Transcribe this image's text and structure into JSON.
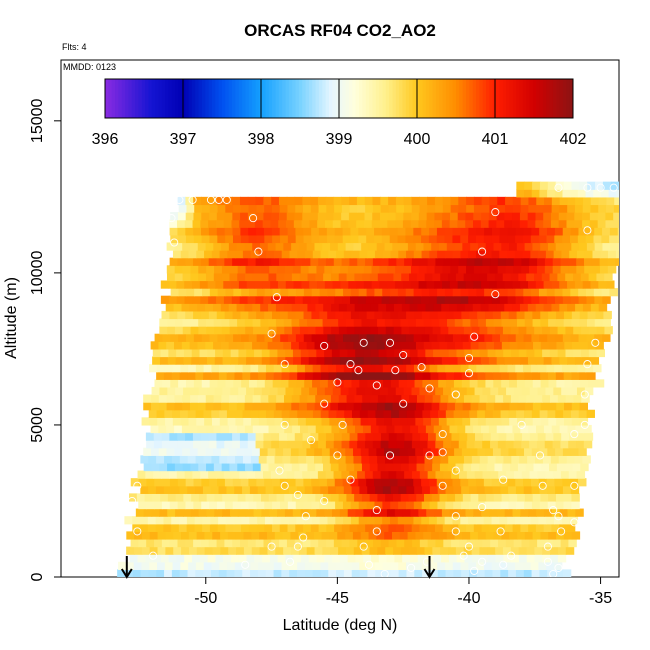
{
  "chart_data": {
    "type": "heatmap",
    "title": "ORCAS RF04 CO2_AO2",
    "annotations": {
      "flights": "Flts: 4",
      "date": "MMDD: 0123"
    },
    "xlabel": "Latitude (deg N)",
    "ylabel": "Altitude (m)",
    "xlim": [
      -55.5,
      -34.3
    ],
    "ylim": [
      0,
      17000
    ],
    "x_ticks": [
      -50,
      -45,
      -40,
      -35
    ],
    "x_tick_labels": [
      "-50",
      "-45",
      "-40",
      "-35"
    ],
    "y_ticks": [
      0,
      5000,
      10000,
      15000
    ],
    "y_tick_labels": [
      "0",
      "5000",
      "10000",
      "15000"
    ],
    "colorbar": {
      "min": 396,
      "max": 402,
      "ticks": [
        396,
        397,
        398,
        399,
        400,
        401,
        402
      ],
      "tick_labels": [
        "396",
        "397",
        "398",
        "399",
        "400",
        "401",
        "402"
      ],
      "stops": [
        {
          "v": 396.0,
          "c": "#8a2be2"
        },
        {
          "v": 396.6,
          "c": "#1414d2"
        },
        {
          "v": 397.0,
          "c": "#0000b4"
        },
        {
          "v": 397.5,
          "c": "#0050f0"
        },
        {
          "v": 398.0,
          "c": "#14a0ff"
        },
        {
          "v": 398.5,
          "c": "#78d2ff"
        },
        {
          "v": 398.9,
          "c": "#e6f6ff"
        },
        {
          "v": 399.2,
          "c": "#ffffdc"
        },
        {
          "v": 399.6,
          "c": "#fff08c"
        },
        {
          "v": 400.0,
          "c": "#ffc81e"
        },
        {
          "v": 400.5,
          "c": "#ff8c00"
        },
        {
          "v": 401.0,
          "c": "#ff1e00"
        },
        {
          "v": 401.5,
          "c": "#d20000"
        },
        {
          "v": 402.0,
          "c": "#8c1414"
        }
      ]
    },
    "arrows_latitude": [
      -53.0,
      -41.5
    ],
    "curtain": {
      "lat_bottom_left": -53.2,
      "lat_bottom_right": -36.3,
      "lat_top_left": -51.0,
      "lat_top_right": -33.9,
      "alt_top_left": 12500,
      "alt_top_right": 12900,
      "alt_step": 250
    },
    "co2_field_centers": [
      {
        "lat": -44.5,
        "alt": 7300,
        "value": 401.4,
        "radius": 2.5
      },
      {
        "lat": -41.0,
        "alt": 9500,
        "value": 401.1,
        "radius": 3.0
      },
      {
        "lat": -43.0,
        "alt": 2900,
        "value": 401.2,
        "radius": 1.8
      },
      {
        "lat": -42.5,
        "alt": 4900,
        "value": 401.0,
        "radius": 2.0
      },
      {
        "lat": -38.0,
        "alt": 11000,
        "value": 401.0,
        "radius": 2.5
      },
      {
        "lat": -48.0,
        "alt": 11000,
        "value": 401.0,
        "radius": 2.5
      }
    ],
    "flight_points": [
      [
        -51.5,
        12400
      ],
      [
        -51.0,
        12400
      ],
      [
        -50.5,
        12400
      ],
      [
        -49.8,
        12400
      ],
      [
        -49.5,
        12400
      ],
      [
        -49.2,
        12400
      ],
      [
        -51.3,
        11800
      ],
      [
        -48.2,
        11800
      ],
      [
        -51.2,
        11000
      ],
      [
        -52.0,
        10300
      ],
      [
        -48.0,
        10700
      ],
      [
        -52.8,
        9300
      ],
      [
        -47.3,
        9200
      ],
      [
        -53.2,
        8000
      ],
      [
        -47.5,
        8000
      ],
      [
        -45.5,
        7600
      ],
      [
        -44.5,
        7000
      ],
      [
        -44.0,
        7700
      ],
      [
        -43.0,
        7700
      ],
      [
        -42.5,
        7300
      ],
      [
        -44.2,
        6800
      ],
      [
        -43.5,
        6300
      ],
      [
        -42.8,
        6800
      ],
      [
        -53.0,
        6700
      ],
      [
        -52.6,
        6000
      ],
      [
        -47.0,
        7000
      ],
      [
        -41.8,
        6900
      ],
      [
        -41.5,
        6200
      ],
      [
        -40.5,
        6000
      ],
      [
        -40.0,
        7200
      ],
      [
        -40.0,
        6700
      ],
      [
        -39.8,
        7900
      ],
      [
        -40.5,
        6000
      ],
      [
        -39.0,
        9300
      ],
      [
        -39.5,
        10700
      ],
      [
        -39.0,
        12000
      ],
      [
        -36.6,
        12800
      ],
      [
        -35.5,
        12800
      ],
      [
        -35.0,
        12800
      ],
      [
        -34.5,
        12800
      ],
      [
        -35.5,
        11400
      ],
      [
        -34.0,
        11000
      ],
      [
        -34.0,
        10200
      ],
      [
        -35.2,
        7700
      ],
      [
        -35.5,
        7000
      ],
      [
        -35.6,
        6000
      ],
      [
        -35.6,
        5000
      ],
      [
        -36.0,
        4700
      ],
      [
        -36.0,
        3000
      ],
      [
        -36.6,
        2000
      ],
      [
        -37.0,
        1000
      ],
      [
        -37.0,
        500
      ],
      [
        -36.6,
        300
      ],
      [
        -53.0,
        4000
      ],
      [
        -52.6,
        3000
      ],
      [
        -52.8,
        2500
      ],
      [
        -52.6,
        1500
      ],
      [
        -52.0,
        700
      ],
      [
        -47.0,
        5000
      ],
      [
        -47.2,
        3500
      ],
      [
        -47.0,
        3000
      ],
      [
        -46.5,
        2700
      ],
      [
        -46.2,
        2000
      ],
      [
        -46.3,
        1300
      ],
      [
        -45.5,
        2500
      ],
      [
        -45.0,
        4000
      ],
      [
        -44.8,
        5000
      ],
      [
        -44.5,
        3200
      ],
      [
        -44.0,
        1000
      ],
      [
        -43.5,
        1500
      ],
      [
        -43.5,
        2200
      ],
      [
        -43.0,
        4000
      ],
      [
        -41.5,
        4000
      ],
      [
        -41.0,
        4700
      ],
      [
        -41.0,
        4100
      ],
      [
        -40.5,
        3500
      ],
      [
        -41.0,
        3000
      ],
      [
        -40.5,
        2000
      ],
      [
        -40.5,
        1500
      ],
      [
        -40.0,
        1000
      ],
      [
        -40.2,
        700
      ],
      [
        -39.8,
        200
      ],
      [
        -39.5,
        500
      ],
      [
        -39.5,
        2300
      ],
      [
        -38.7,
        3200
      ],
      [
        -38.0,
        5000
      ],
      [
        -37.3,
        4000
      ],
      [
        -37.2,
        3000
      ],
      [
        -36.8,
        2200
      ],
      [
        -36.5,
        1500
      ],
      [
        -36.0,
        1800
      ],
      [
        -38.8,
        1500
      ],
      [
        -38.4,
        700
      ],
      [
        -48.5,
        400
      ],
      [
        -47.5,
        1000
      ],
      [
        -46.8,
        500
      ],
      [
        -43.8,
        400
      ],
      [
        -43.2,
        100
      ],
      [
        -42.2,
        300
      ],
      [
        -41.6,
        500
      ],
      [
        -38.7,
        400
      ],
      [
        -36.8,
        100
      ],
      [
        -46.5,
        1000
      ],
      [
        -45.5,
        5700
      ],
      [
        -46.0,
        4500
      ],
      [
        -45.0,
        6400
      ],
      [
        -42.5,
        5700
      ]
    ]
  }
}
